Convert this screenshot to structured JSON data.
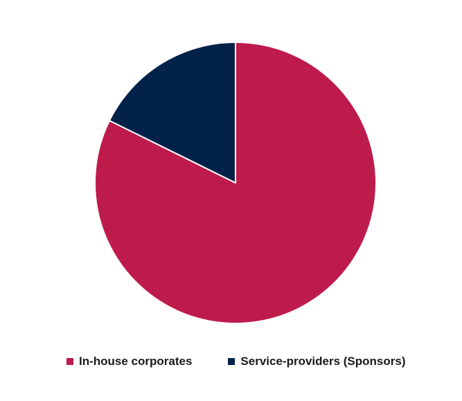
{
  "chart_data": {
    "type": "pie",
    "title": "",
    "slices": [
      {
        "label": "In-house corporates",
        "value": 82.3,
        "color": "#be1b4d"
      },
      {
        "label": "Service-providers (Sponsors)",
        "value": 17.7,
        "color": "#03224a"
      }
    ],
    "start": "12 o'clock",
    "direction": "clockwise",
    "legend_position": "bottom"
  }
}
